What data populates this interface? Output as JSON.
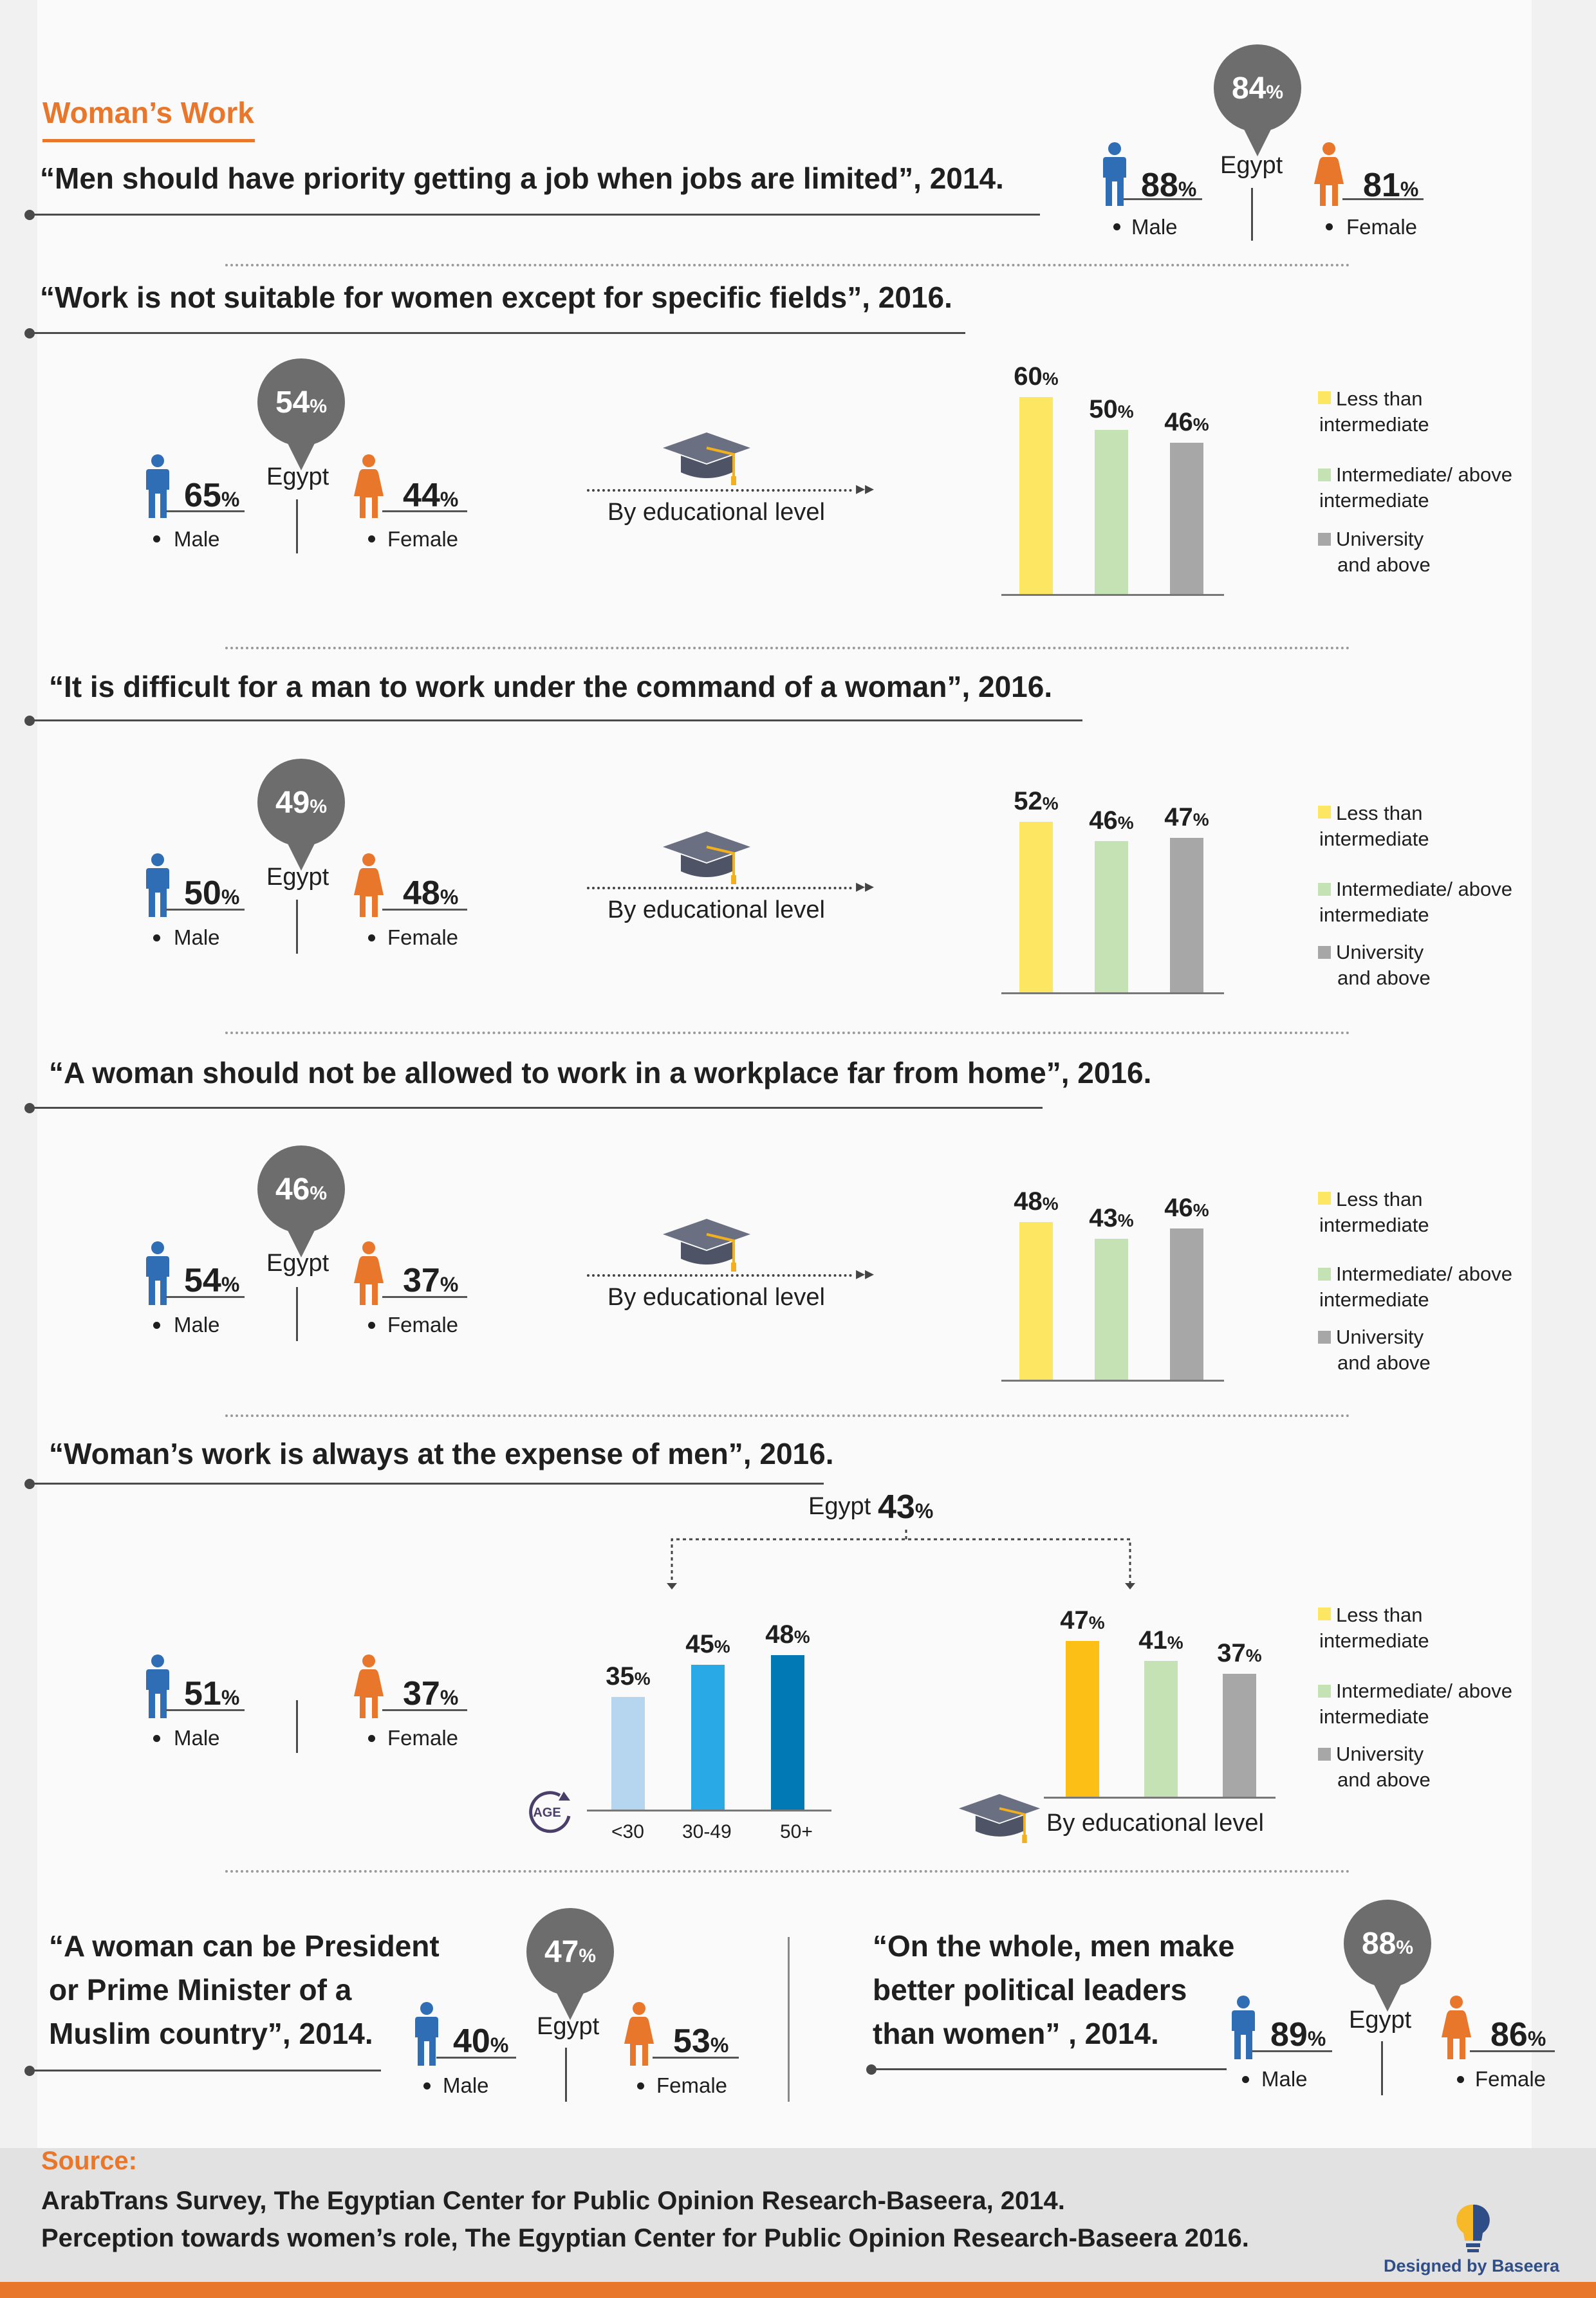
{
  "colors": {
    "accent": "#e8762b",
    "male": "#2f6db5",
    "female": "#e8762b",
    "pin": "#6d6d6d",
    "less_than_intermediate": "#fde762",
    "less_than_intermediate_dark": "#fbbf16",
    "intermediate": "#c5e2b5",
    "university": "#a7a7a7",
    "age_lt30": "#b6d6f0",
    "age_30_49": "#29a9e6",
    "age_50p": "#0079b5"
  },
  "header": {
    "title": "Woman’s Work"
  },
  "common": {
    "male": "Male",
    "female": "Female",
    "egypt": "Egypt",
    "pct": "%",
    "by_edu": "By educational level",
    "legend": {
      "less_than_line1": "Less than",
      "less_than_line2": "intermediate",
      "intermediate_line1": "Intermediate/ above",
      "intermediate_line2": "intermediate",
      "university_line1": "University",
      "university_line2": "and above"
    },
    "age_badge": "AGE"
  },
  "s1": {
    "question": "“Men should have priority getting a job when jobs are limited”, 2014.",
    "egypt": "84",
    "male": "88",
    "female": "81"
  },
  "s2": {
    "question": "“Work is not suitable for women except for specific fields”, 2016.",
    "egypt": "54",
    "male": "65",
    "female": "44",
    "edu": [
      "60",
      "50",
      "46"
    ]
  },
  "s3": {
    "question": "“It is difficult for a man to work under the command of a woman”, 2016.",
    "egypt": "49",
    "male": "50",
    "female": "48",
    "edu": [
      "52",
      "46",
      "47"
    ]
  },
  "s4": {
    "question": "“A woman should not be allowed to work in a workplace far from home”, 2016.",
    "egypt": "46",
    "male": "54",
    "female": "37",
    "edu": [
      "48",
      "43",
      "46"
    ]
  },
  "s5": {
    "question": "“Woman’s work is always at the expense of men”, 2016.",
    "egypt_label": "Egypt",
    "egypt": "43",
    "male": "51",
    "female": "37",
    "age_values": [
      "35",
      "45",
      "48"
    ],
    "age_labels": [
      "<30",
      "30-49",
      "50+"
    ],
    "edu": [
      "47",
      "41",
      "37"
    ]
  },
  "s6": {
    "question_l1": "“A woman can be President",
    "question_l2": "or Prime Minister of a",
    "question_l3": "Muslim country”, 2014.",
    "egypt": "47",
    "male": "40",
    "female": "53"
  },
  "s7": {
    "question_l1": "“On the whole, men make",
    "question_l2": "better political leaders",
    "question_l3": "than women” , 2014.",
    "egypt": "88",
    "male": "89",
    "female": "86"
  },
  "footer": {
    "source_title": "Source:",
    "line1": "ArabTrans Survey, The Egyptian Center for Public Opinion Research-Baseera, 2014.",
    "line2": "Perception towards women’s role, The Egyptian Center for Public Opinion Research-Baseera 2016.",
    "designer": "Designed by Baseera"
  },
  "chart_data": [
    {
      "type": "bar",
      "title": "“Work is not suitable for women except for specific fields”, 2016.",
      "categories": [
        "Less than intermediate",
        "Intermediate/ above intermediate",
        "University and above"
      ],
      "values": [
        60,
        50,
        46
      ]
    },
    {
      "type": "bar",
      "title": "“It is difficult for a man to work under the command of a woman”, 2016.",
      "categories": [
        "Less than intermediate",
        "Intermediate/ above intermediate",
        "University and above"
      ],
      "values": [
        52,
        46,
        47
      ]
    },
    {
      "type": "bar",
      "title": "“A woman should not be allowed to work in a workplace far from home”, 2016.",
      "categories": [
        "Less than intermediate",
        "Intermediate/ above intermediate",
        "University and above"
      ],
      "values": [
        48,
        43,
        46
      ]
    },
    {
      "type": "bar",
      "title": "“Woman’s work is always at the expense of men”, 2016.",
      "xlabel": "AGE",
      "categories": [
        "<30",
        "30-49",
        "50+"
      ],
      "values": [
        35,
        45,
        48
      ]
    },
    {
      "type": "bar",
      "title": "“Woman’s work is always at the expense of men”, 2016.",
      "xlabel": "By educational level",
      "categories": [
        "Less than intermediate",
        "Intermediate/ above intermediate",
        "University and above"
      ],
      "values": [
        47,
        41,
        37
      ]
    }
  ]
}
